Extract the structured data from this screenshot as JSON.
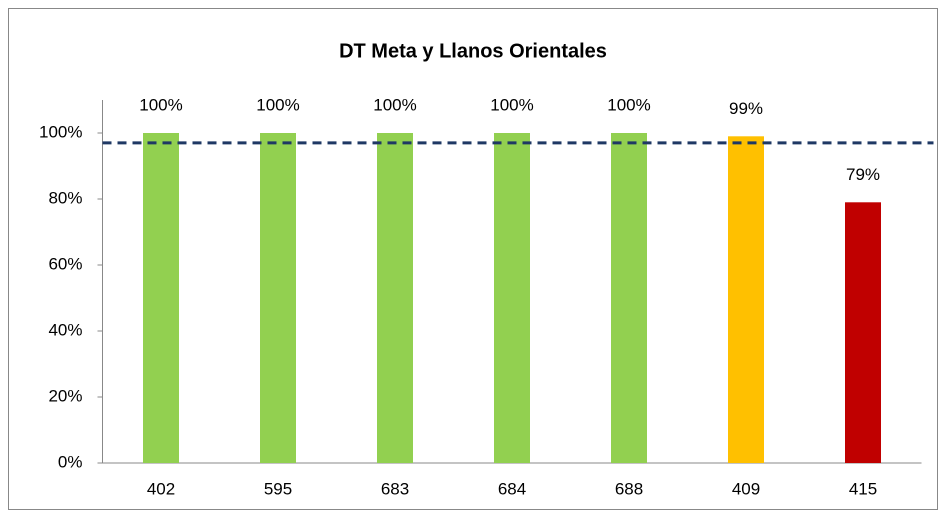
{
  "chart_data": {
    "type": "bar",
    "title": "DT Meta y Llanos Orientales",
    "categories": [
      "402",
      "595",
      "683",
      "684",
      "688",
      "409",
      "415"
    ],
    "values": [
      100,
      100,
      100,
      100,
      100,
      99,
      79
    ],
    "value_labels": [
      "100%",
      "100%",
      "100%",
      "100%",
      "100%",
      "99%",
      "79%"
    ],
    "colors": [
      "#92d050",
      "#92d050",
      "#92d050",
      "#92d050",
      "#92d050",
      "#ffc000",
      "#c00000"
    ],
    "ylim": [
      0,
      110
    ],
    "yticks": [
      {
        "value": 0,
        "label": "0%"
      },
      {
        "value": 20,
        "label": "20%"
      },
      {
        "value": 40,
        "label": "40%"
      },
      {
        "value": 60,
        "label": "60%"
      },
      {
        "value": 80,
        "label": "80%"
      },
      {
        "value": 100,
        "label": "100%"
      }
    ],
    "reference_line": {
      "value": 97,
      "color": "#1f3864"
    },
    "grid": false
  }
}
